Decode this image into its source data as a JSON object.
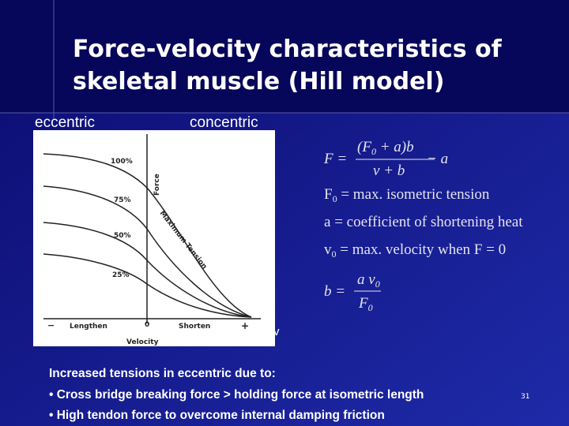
{
  "title": {
    "lines": [
      "Force-velocity characteristics of",
      "skeletal muscle (Hill model)"
    ]
  },
  "labels": {
    "eccentric": "eccentric",
    "concentric": "concentric",
    "velocity_symbol": "v"
  },
  "figure": {
    "curve_labels": [
      "100%",
      "75%",
      "50%",
      "25%"
    ],
    "force_axis": "Force",
    "curve_caption": "Maximum Tension",
    "x_axis": {
      "minus": "−",
      "lengthen": "Lengthen",
      "origin": "0",
      "shorten": "Shorten",
      "plus": "+",
      "title": "Velocity"
    }
  },
  "equations": {
    "main": {
      "lhs": "F =",
      "numerator": [
        "(F",
        "0",
        " + a)b"
      ],
      "denominator": "v + b",
      "tail": "− a"
    },
    "definitions": [
      {
        "symbol": "F",
        "sub": "0",
        "text": " = max. isometric tension"
      },
      {
        "symbol": "a",
        "text": "  = coefficient of shortening heat"
      },
      {
        "symbol": "v",
        "sub": "0",
        "text": " = max. velocity when F = 0"
      }
    ],
    "b": {
      "lhs": "b =",
      "numerator": [
        "a v",
        "0"
      ],
      "denominator": [
        "F",
        "0"
      ]
    }
  },
  "notes": {
    "heading": "Increased tensions in eccentric due to:",
    "bullets": [
      "• Cross bridge breaking force > holding force at  isometric length",
      "• High tendon force to overcome internal damping friction"
    ]
  },
  "slide_number": "31"
}
